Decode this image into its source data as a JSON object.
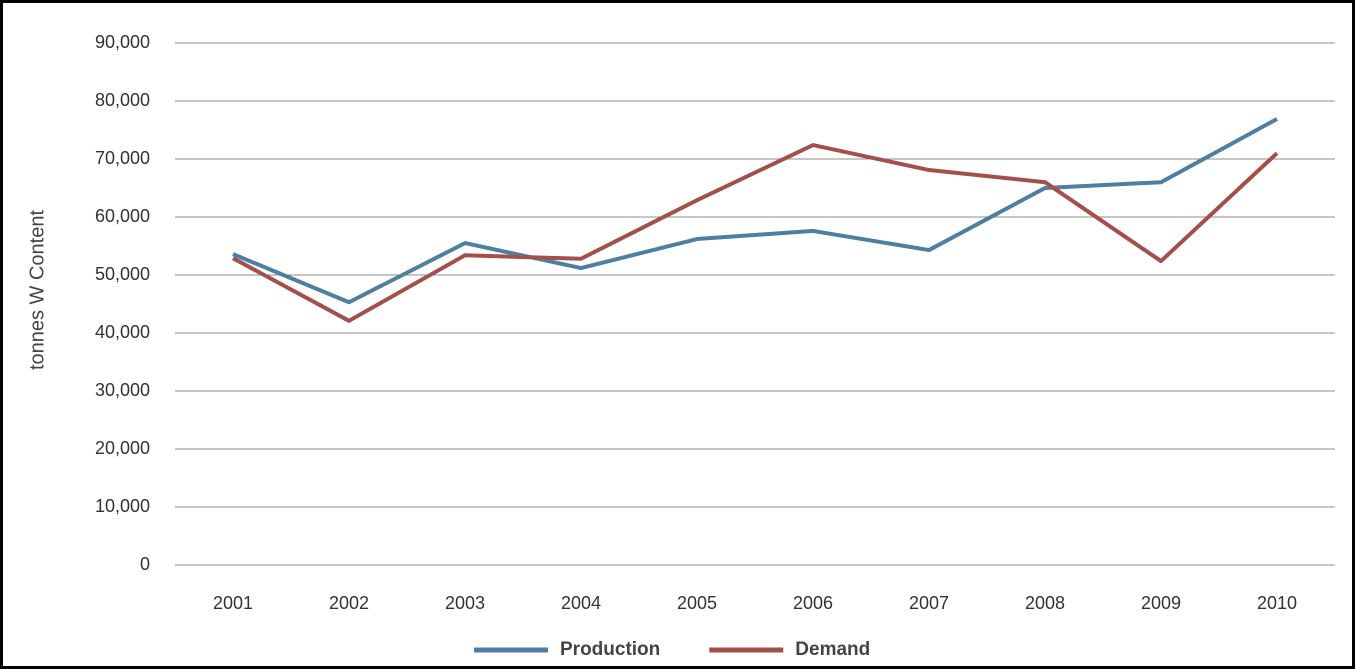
{
  "chart_data": {
    "type": "line",
    "y_label": "tonnes W Content",
    "categories": [
      "2001",
      "2002",
      "2003",
      "2004",
      "2005",
      "2006",
      "2007",
      "2008",
      "2009",
      "2010"
    ],
    "series": [
      {
        "name": "Production",
        "color": "#4f7ea3",
        "values": [
          53600,
          45300,
          55500,
          51200,
          56200,
          57600,
          54300,
          65000,
          66000,
          76900
        ]
      },
      {
        "name": "Demand",
        "color": "#a3504d",
        "values": [
          52900,
          42100,
          53400,
          52800,
          62900,
          72400,
          68100,
          66000,
          52400,
          71000
        ]
      }
    ],
    "ylim": [
      0,
      90000
    ],
    "yticks": [
      0,
      {
        "value": 10000,
        "label": "10,000"
      },
      {
        "value": 20000,
        "label": "20,000"
      },
      {
        "value": 30000,
        "label": "30,000"
      },
      {
        "value": 40000,
        "label": "40,000"
      },
      {
        "value": 50000,
        "label": "50,000"
      },
      {
        "value": 60000,
        "label": "60,000"
      },
      {
        "value": 70000,
        "label": "70,000"
      },
      {
        "value": 80000,
        "label": "80,000"
      },
      {
        "value": 90000,
        "label": "90,000"
      }
    ],
    "grid": true,
    "legend": "bottom"
  }
}
